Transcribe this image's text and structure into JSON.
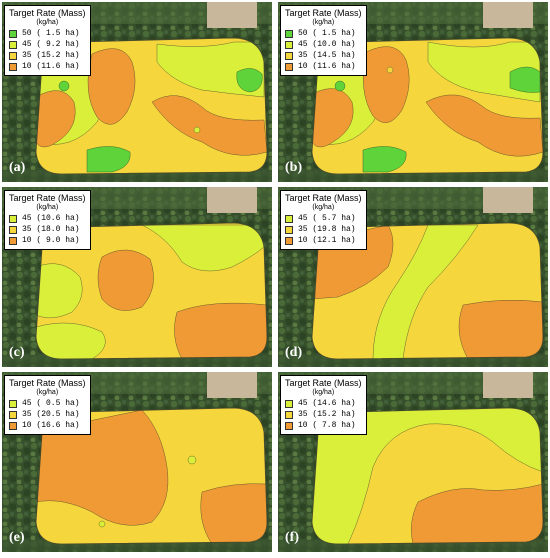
{
  "panels": [
    {
      "tag": "(a)",
      "legend": {
        "title": "Target Rate (Mass)",
        "unit": "(kg/ha)",
        "entries": [
          {
            "label": "50 ( 1.5 ha)",
            "color": "#5fd33a"
          },
          {
            "label": "45 ( 9.2 ha)",
            "color": "#d9ef3a"
          },
          {
            "label": "35 (15.2 ha)",
            "color": "#f5d63c"
          },
          {
            "label": "10 (11.6 ha)",
            "color": "#ef9a34"
          }
        ]
      }
    },
    {
      "tag": "(b)",
      "legend": {
        "title": "Target Rate (Mass)",
        "unit": "(kg/ha)",
        "entries": [
          {
            "label": "50 ( 1.5 ha)",
            "color": "#5fd33a"
          },
          {
            "label": "45 (10.0 ha)",
            "color": "#d9ef3a"
          },
          {
            "label": "35 (14.5 ha)",
            "color": "#f5d63c"
          },
          {
            "label": "10 (11.6 ha)",
            "color": "#ef9a34"
          }
        ]
      }
    },
    {
      "tag": "(c)",
      "legend": {
        "title": "Target Rate (Mass)",
        "unit": "(kg/ha)",
        "entries": [
          {
            "label": "45 (10.6 ha)",
            "color": "#d9ef3a"
          },
          {
            "label": "35 (18.0 ha)",
            "color": "#f5d63c"
          },
          {
            "label": "10 ( 9.0 ha)",
            "color": "#ef9a34"
          }
        ]
      }
    },
    {
      "tag": "(d)",
      "legend": {
        "title": "Target Rate (Mass)",
        "unit": "(kg/ha)",
        "entries": [
          {
            "label": "45 ( 5.7 ha)",
            "color": "#d9ef3a"
          },
          {
            "label": "35 (19.8 ha)",
            "color": "#f5d63c"
          },
          {
            "label": "10 (12.1 ha)",
            "color": "#ef9a34"
          }
        ]
      }
    },
    {
      "tag": "(e)",
      "legend": {
        "title": "Target Rate (Mass)",
        "unit": "(kg/ha)",
        "entries": [
          {
            "label": "45 ( 0.5 ha)",
            "color": "#d9ef3a"
          },
          {
            "label": "35 (20.5 ha)",
            "color": "#f5d63c"
          },
          {
            "label": "10 (16.6 ha)",
            "color": "#ef9a34"
          }
        ]
      }
    },
    {
      "tag": "(f)",
      "legend": {
        "title": "Target Rate (Mass)",
        "unit": "(kg/ha)",
        "entries": [
          {
            "label": "45 (14.6 ha)",
            "color": "#d9ef3a"
          },
          {
            "label": "35 (15.2 ha)",
            "color": "#f5d63c"
          },
          {
            "label": "10 ( 7.8 ha)",
            "color": "#ef9a34"
          }
        ]
      }
    }
  ]
}
